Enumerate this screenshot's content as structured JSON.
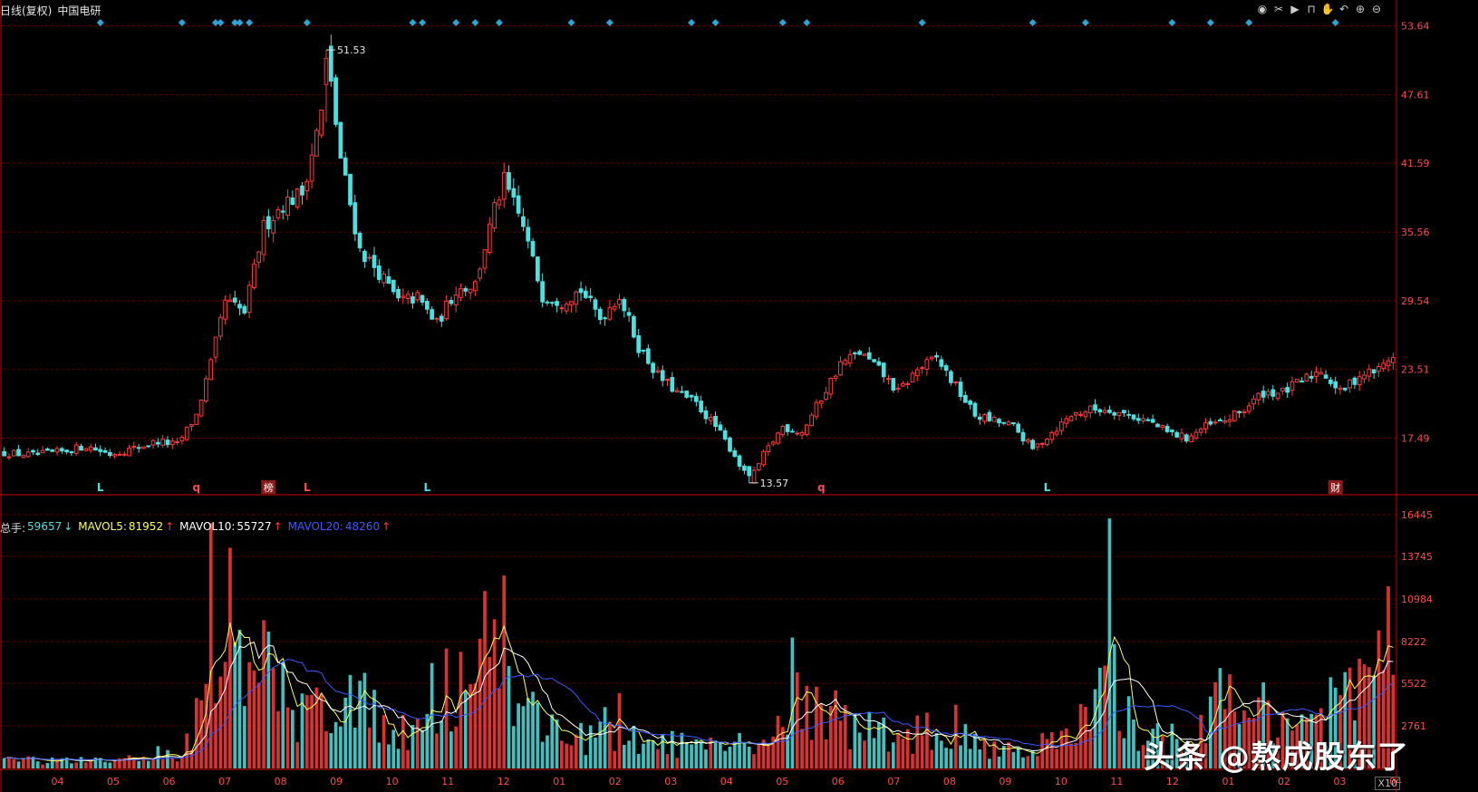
{
  "header": {
    "period_label": "日线(复权)",
    "stock_name": "中国电研"
  },
  "toolbar": {
    "icons": [
      "eye-icon",
      "scissors-icon",
      "play-icon",
      "lock-icon",
      "hand-icon",
      "undo-icon",
      "zoom-in-icon",
      "zoom-out-icon"
    ]
  },
  "volume_legend": {
    "total_label": "总手:",
    "total_value": "59657",
    "total_arrow": "↓",
    "mavol5_label": "MAVOL5:",
    "mavol5_value": "81952",
    "mavol5_arrow": "↑",
    "mavol10_label": "MAVOL10:",
    "mavol10_value": "55727",
    "mavol10_arrow": "↑",
    "mavol20_label": "MAVOL20:",
    "mavol20_value": "48260",
    "mavol20_arrow": "↑"
  },
  "watermark": "头条 @熬成股东了",
  "x10_label": "X10",
  "colors": {
    "up": "#ff3b3b",
    "down": "#4ee0e0",
    "mavol5": "#ffff55",
    "mavol10": "#ffffff",
    "mavol20": "#3a5cff",
    "axis": "#cc0000",
    "grid": "#5a0000",
    "diamond": "#2aa5d8"
  },
  "chart_data": [
    {
      "type": "candlestick",
      "title": "",
      "y_ticks": [
        "53.64",
        "47.61",
        "41.59",
        "35.56",
        "29.54",
        "23.51",
        "17.49"
      ],
      "ylim": [
        13,
        54
      ],
      "x_ticks": [
        "04",
        "05",
        "06",
        "07",
        "08",
        "09",
        "10",
        "11",
        "12",
        "01",
        "02",
        "03",
        "04",
        "05",
        "06",
        "07",
        "08",
        "09",
        "10",
        "11",
        "12",
        "01",
        "02",
        "03",
        "04"
      ],
      "price_anchors": [
        [
          0,
          16.2
        ],
        [
          6,
          16.0
        ],
        [
          12,
          16.3
        ],
        [
          17,
          16.8
        ],
        [
          22,
          16.1
        ],
        [
          27,
          16.6
        ],
        [
          32,
          17.2
        ],
        [
          36,
          16.9
        ],
        [
          40,
          19.5
        ],
        [
          43,
          24.0
        ],
        [
          46,
          29.5
        ],
        [
          50,
          28.5
        ],
        [
          54,
          36.0
        ],
        [
          58,
          38.0
        ],
        [
          62,
          39.0
        ],
        [
          66,
          46.0
        ],
        [
          67,
          51.5
        ],
        [
          70,
          42.0
        ],
        [
          74,
          34.0
        ],
        [
          78,
          32.0
        ],
        [
          82,
          29.5
        ],
        [
          86,
          29.8
        ],
        [
          90,
          27.5
        ],
        [
          94,
          30.5
        ],
        [
          98,
          31.0
        ],
        [
          102,
          37.5
        ],
        [
          104,
          40.0
        ],
        [
          108,
          36.0
        ],
        [
          112,
          30.0
        ],
        [
          116,
          29.5
        ],
        [
          120,
          30.5
        ],
        [
          124,
          28.0
        ],
        [
          128,
          30.0
        ],
        [
          132,
          25.5
        ],
        [
          136,
          23.0
        ],
        [
          140,
          21.5
        ],
        [
          144,
          20.5
        ],
        [
          148,
          18.5
        ],
        [
          152,
          16.0
        ],
        [
          155,
          13.6
        ],
        [
          158,
          16.0
        ],
        [
          162,
          18.5
        ],
        [
          166,
          18.0
        ],
        [
          170,
          21.0
        ],
        [
          174,
          24.0
        ],
        [
          178,
          25.0
        ],
        [
          182,
          23.5
        ],
        [
          186,
          21.5
        ],
        [
          190,
          23.5
        ],
        [
          194,
          24.5
        ],
        [
          198,
          22.0
        ],
        [
          202,
          19.5
        ],
        [
          206,
          19.0
        ],
        [
          210,
          18.5
        ],
        [
          214,
          16.5
        ],
        [
          218,
          18.0
        ],
        [
          222,
          19.5
        ],
        [
          226,
          20.0
        ],
        [
          230,
          20.0
        ],
        [
          234,
          19.5
        ],
        [
          238,
          19.0
        ],
        [
          242,
          18.0
        ],
        [
          246,
          17.5
        ],
        [
          250,
          18.5
        ],
        [
          254,
          19.0
        ],
        [
          258,
          20.0
        ],
        [
          262,
          21.5
        ],
        [
          266,
          21.5
        ],
        [
          270,
          22.5
        ],
        [
          274,
          23.5
        ],
        [
          278,
          21.5
        ],
        [
          282,
          23.0
        ],
        [
          286,
          23.5
        ],
        [
          289,
          24.8
        ]
      ],
      "volume_anchors": [
        [
          0,
          600
        ],
        [
          10,
          500
        ],
        [
          20,
          450
        ],
        [
          30,
          700
        ],
        [
          38,
          900
        ],
        [
          43,
          10000
        ],
        [
          46,
          7000
        ],
        [
          50,
          5500
        ],
        [
          54,
          6500
        ],
        [
          58,
          4500
        ],
        [
          62,
          3500
        ],
        [
          66,
          4000
        ],
        [
          70,
          5500
        ],
        [
          74,
          4000
        ],
        [
          78,
          3500
        ],
        [
          82,
          2800
        ],
        [
          86,
          2500
        ],
        [
          90,
          5000
        ],
        [
          95,
          6000
        ],
        [
          100,
          7000
        ],
        [
          104,
          6000
        ],
        [
          108,
          4000
        ],
        [
          112,
          3000
        ],
        [
          118,
          2200
        ],
        [
          124,
          2000
        ],
        [
          130,
          1800
        ],
        [
          136,
          1700
        ],
        [
          142,
          1500
        ],
        [
          148,
          1200
        ],
        [
          154,
          1500
        ],
        [
          160,
          2000
        ],
        [
          166,
          4800
        ],
        [
          170,
          4200
        ],
        [
          174,
          3000
        ],
        [
          180,
          2400
        ],
        [
          186,
          2200
        ],
        [
          192,
          2300
        ],
        [
          198,
          2000
        ],
        [
          204,
          1600
        ],
        [
          210,
          1300
        ],
        [
          216,
          1500
        ],
        [
          222,
          2000
        ],
        [
          226,
          3500
        ],
        [
          230,
          6000
        ],
        [
          234,
          3000
        ],
        [
          240,
          2000
        ],
        [
          246,
          1800
        ],
        [
          250,
          3500
        ],
        [
          254,
          4500
        ],
        [
          258,
          3000
        ],
        [
          262,
          4500
        ],
        [
          266,
          3500
        ],
        [
          270,
          3000
        ],
        [
          274,
          3500
        ],
        [
          278,
          4000
        ],
        [
          282,
          5000
        ],
        [
          286,
          7500
        ],
        [
          289,
          6000
        ]
      ],
      "n_bars": 290,
      "high_label": "51.53",
      "low_label": "13.57",
      "markers": [
        {
          "label": "L",
          "bar": 20,
          "color": "cyan"
        },
        {
          "label": "q",
          "bar": 40,
          "color": "red"
        },
        {
          "label": "榜",
          "bar": 55,
          "color": "boxed"
        },
        {
          "label": "L",
          "bar": 63,
          "color": "red"
        },
        {
          "label": "L",
          "bar": 88,
          "color": "cyan"
        },
        {
          "label": "q",
          "bar": 170,
          "color": "red"
        },
        {
          "label": "L",
          "bar": 217,
          "color": "cyan"
        },
        {
          "label": "财",
          "bar": 277,
          "color": "boxed"
        }
      ],
      "diamond_bars": [
        20,
        37,
        44,
        45,
        48,
        49,
        51,
        63,
        85,
        87,
        94,
        98,
        103,
        118,
        126,
        143,
        148,
        162,
        167,
        191,
        214,
        225,
        243,
        251,
        259,
        277
      ]
    },
    {
      "type": "bar",
      "title": "",
      "y_ticks": [
        "16445",
        "13745",
        "10984",
        "8222",
        "5522",
        "2761"
      ],
      "ylim": [
        0,
        16445
      ],
      "series": [
        {
          "name": "MAVOL5",
          "values": []
        },
        {
          "name": "MAVOL10",
          "values": []
        },
        {
          "name": "MAVOL20",
          "values": []
        }
      ]
    }
  ]
}
